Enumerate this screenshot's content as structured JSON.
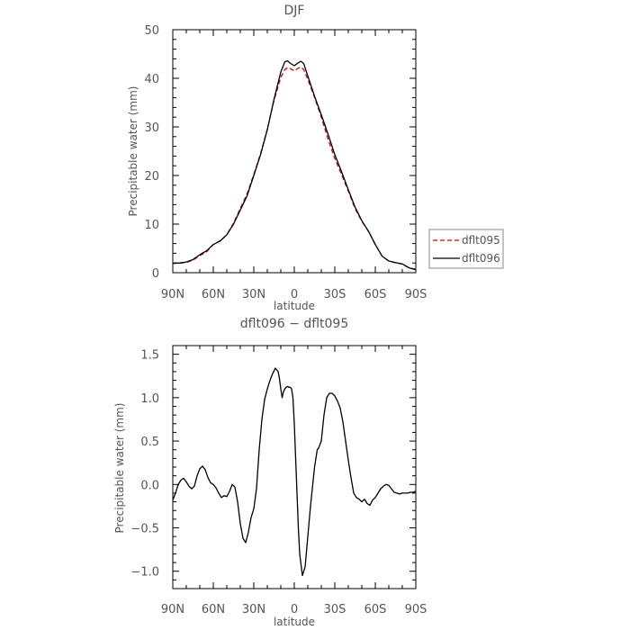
{
  "chart_data": [
    {
      "type": "line",
      "title": "DJF",
      "xlabel": "latitude",
      "ylabel": "Precipitable water (mm)",
      "xlim": [
        90,
        -90
      ],
      "ylim": [
        0,
        50
      ],
      "xticks": [
        90,
        60,
        30,
        0,
        -30,
        -60,
        -90
      ],
      "xtick_labels": [
        "90N",
        "60N",
        "30N",
        "0",
        "30S",
        "60S",
        "90S"
      ],
      "yticks": [
        0,
        10,
        20,
        30,
        40,
        50
      ],
      "ytick_labels": [
        "0",
        "10",
        "20",
        "30",
        "40",
        "50"
      ],
      "grid": false,
      "legend": "outside-right",
      "series": [
        {
          "name": "dflt095",
          "color": "#cc0000",
          "dash": "dashed",
          "x": [
            90,
            85,
            80,
            75,
            70,
            65,
            60,
            55,
            50,
            45,
            40,
            35,
            30,
            25,
            20,
            15,
            10,
            7,
            5,
            3,
            0,
            -3,
            -5,
            -7,
            -10,
            -15,
            -20,
            -25,
            -30,
            -35,
            -40,
            -45,
            -50,
            -55,
            -60,
            -65,
            -70,
            -75,
            -80,
            -85,
            -90
          ],
          "y": [
            2,
            2,
            2.1,
            2.6,
            3.5,
            4.3,
            5.8,
            6.6,
            7.8,
            10.2,
            13.2,
            16.2,
            20.2,
            24.5,
            29.5,
            35.5,
            40.2,
            41.8,
            42.2,
            42.0,
            41.5,
            42.1,
            42.3,
            41.8,
            39.8,
            36.1,
            32.0,
            27.5,
            23.5,
            20.2,
            16.8,
            13.2,
            10.6,
            8.5,
            5.8,
            3.4,
            2.4,
            2.0,
            1.8,
            1.0,
            0.7
          ]
        },
        {
          "name": "dflt096",
          "color": "#000000",
          "dash": "solid",
          "x": [
            90,
            85,
            80,
            75,
            70,
            65,
            60,
            55,
            50,
            45,
            40,
            35,
            30,
            25,
            20,
            15,
            10,
            7,
            5,
            3,
            0,
            -3,
            -5,
            -7,
            -10,
            -15,
            -20,
            -25,
            -30,
            -35,
            -40,
            -45,
            -50,
            -55,
            -60,
            -65,
            -70,
            -75,
            -80,
            -85,
            -90
          ],
          "y": [
            1.9,
            2,
            2.2,
            2.7,
            3.7,
            4.5,
            5.8,
            6.5,
            7.8,
            10.0,
            12.9,
            15.8,
            20.0,
            24.3,
            29.4,
            35.7,
            41.3,
            43.4,
            43.6,
            43.1,
            42.6,
            43.2,
            43.5,
            43.0,
            40.5,
            36.3,
            32.5,
            28.5,
            24.3,
            20.8,
            17.1,
            13.5,
            10.7,
            8.5,
            5.8,
            3.4,
            2.4,
            2.1,
            1.8,
            1.0,
            0.6
          ]
        }
      ]
    },
    {
      "type": "line",
      "title": "dflt096 − dflt095",
      "xlabel": "latitude",
      "ylabel": "Precipitable water (mm)",
      "xlim": [
        90,
        -90
      ],
      "ylim": [
        -1.2,
        1.6
      ],
      "xticks": [
        90,
        60,
        30,
        0,
        -30,
        -60,
        -90
      ],
      "xtick_labels": [
        "90N",
        "60N",
        "30N",
        "0",
        "30S",
        "60S",
        "90S"
      ],
      "yticks": [
        -1.0,
        -0.5,
        0.0,
        0.5,
        1.0,
        1.5
      ],
      "ytick_labels": [
        "−1.0",
        "−0.5",
        "0.0",
        "0.5",
        "1.0",
        "1.5"
      ],
      "grid": false,
      "series": [
        {
          "color": "#000000",
          "dash": "solid",
          "x": [
            90,
            88,
            86,
            84,
            82,
            80,
            78,
            76,
            74,
            72,
            70,
            68,
            66,
            64,
            62,
            60,
            58,
            56,
            54,
            52,
            50,
            48,
            46,
            44,
            42,
            40,
            38,
            36,
            34,
            32,
            30,
            28,
            26,
            24,
            22,
            20,
            18,
            16,
            14,
            12,
            11,
            10,
            9,
            8,
            7,
            6,
            5,
            4,
            3,
            2,
            1,
            0,
            -1,
            -2,
            -3,
            -4,
            -6,
            -8,
            -10,
            -12,
            -14,
            -15,
            -16,
            -17,
            -18,
            -20,
            -22,
            -24,
            -26,
            -28,
            -30,
            -32,
            -34,
            -36,
            -38,
            -40,
            -42,
            -44,
            -46,
            -48,
            -50,
            -52,
            -54,
            -56,
            -58,
            -60,
            -62,
            -64,
            -66,
            -68,
            -70,
            -72,
            -74,
            -76,
            -78,
            -80,
            -82,
            -84,
            -86,
            -88,
            -90
          ],
          "y": [
            -0.18,
            -0.1,
            0.0,
            0.05,
            0.07,
            0.03,
            -0.02,
            -0.05,
            -0.02,
            0.1,
            0.18,
            0.21,
            0.17,
            0.08,
            0.02,
            0.0,
            -0.04,
            -0.1,
            -0.15,
            -0.13,
            -0.14,
            -0.08,
            0.0,
            -0.03,
            -0.2,
            -0.45,
            -0.62,
            -0.67,
            -0.55,
            -0.38,
            -0.28,
            -0.05,
            0.4,
            0.75,
            0.98,
            1.1,
            1.2,
            1.28,
            1.34,
            1.3,
            1.22,
            1.1,
            1.0,
            1.07,
            1.1,
            1.12,
            1.13,
            1.12,
            1.12,
            1.1,
            1.0,
            0.7,
            0.3,
            -0.1,
            -0.5,
            -0.8,
            -1.05,
            -0.95,
            -0.6,
            -0.25,
            0.05,
            0.2,
            0.3,
            0.4,
            0.42,
            0.5,
            0.8,
            1.0,
            1.05,
            1.05,
            1.02,
            0.96,
            0.88,
            0.72,
            0.5,
            0.28,
            0.08,
            -0.1,
            -0.15,
            -0.17,
            -0.2,
            -0.17,
            -0.22,
            -0.24,
            -0.18,
            -0.15,
            -0.1,
            -0.05,
            -0.02,
            0.0,
            -0.01,
            -0.05,
            -0.09,
            -0.1,
            -0.11,
            -0.1,
            -0.1,
            -0.1,
            -0.09,
            -0.09,
            -0.08
          ]
        }
      ]
    }
  ]
}
